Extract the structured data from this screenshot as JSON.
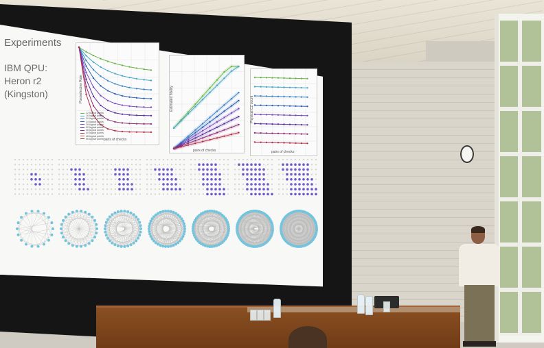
{
  "slide": {
    "title": "Experiments",
    "subtitle_lines": [
      "IBM QPU:",
      "Heron r2",
      "(Kingston)"
    ]
  },
  "charts": [
    {
      "ylabel": "Postselection Rate",
      "xlabel": "pairs of checks",
      "legend": [
        "12 logical qubits",
        "16 logical qubits",
        "20 logical qubits",
        "24 logical qubits",
        "28 logical qubits",
        "32 logical qubits",
        "36 logical qubits",
        "40 logical qubits",
        "48 logical qubits",
        "56 logical qubits"
      ]
    },
    {
      "ylabel": "Estimated fidelity",
      "xlabel": "pairs of checks"
    },
    {
      "ylabel": "Physical CZ count",
      "xlabel": "pairs of checks"
    }
  ],
  "colors": {
    "series": [
      "#6db64a",
      "#47a9c9",
      "#3d86c8",
      "#2f5fb8",
      "#7a4bc0",
      "#5a2fa2",
      "#8e2f7c",
      "#b0304a",
      "#d8474b",
      "#8e5a2b"
    ],
    "lattice_node": "#6e57c9",
    "graph_node": "#74c4de"
  }
}
